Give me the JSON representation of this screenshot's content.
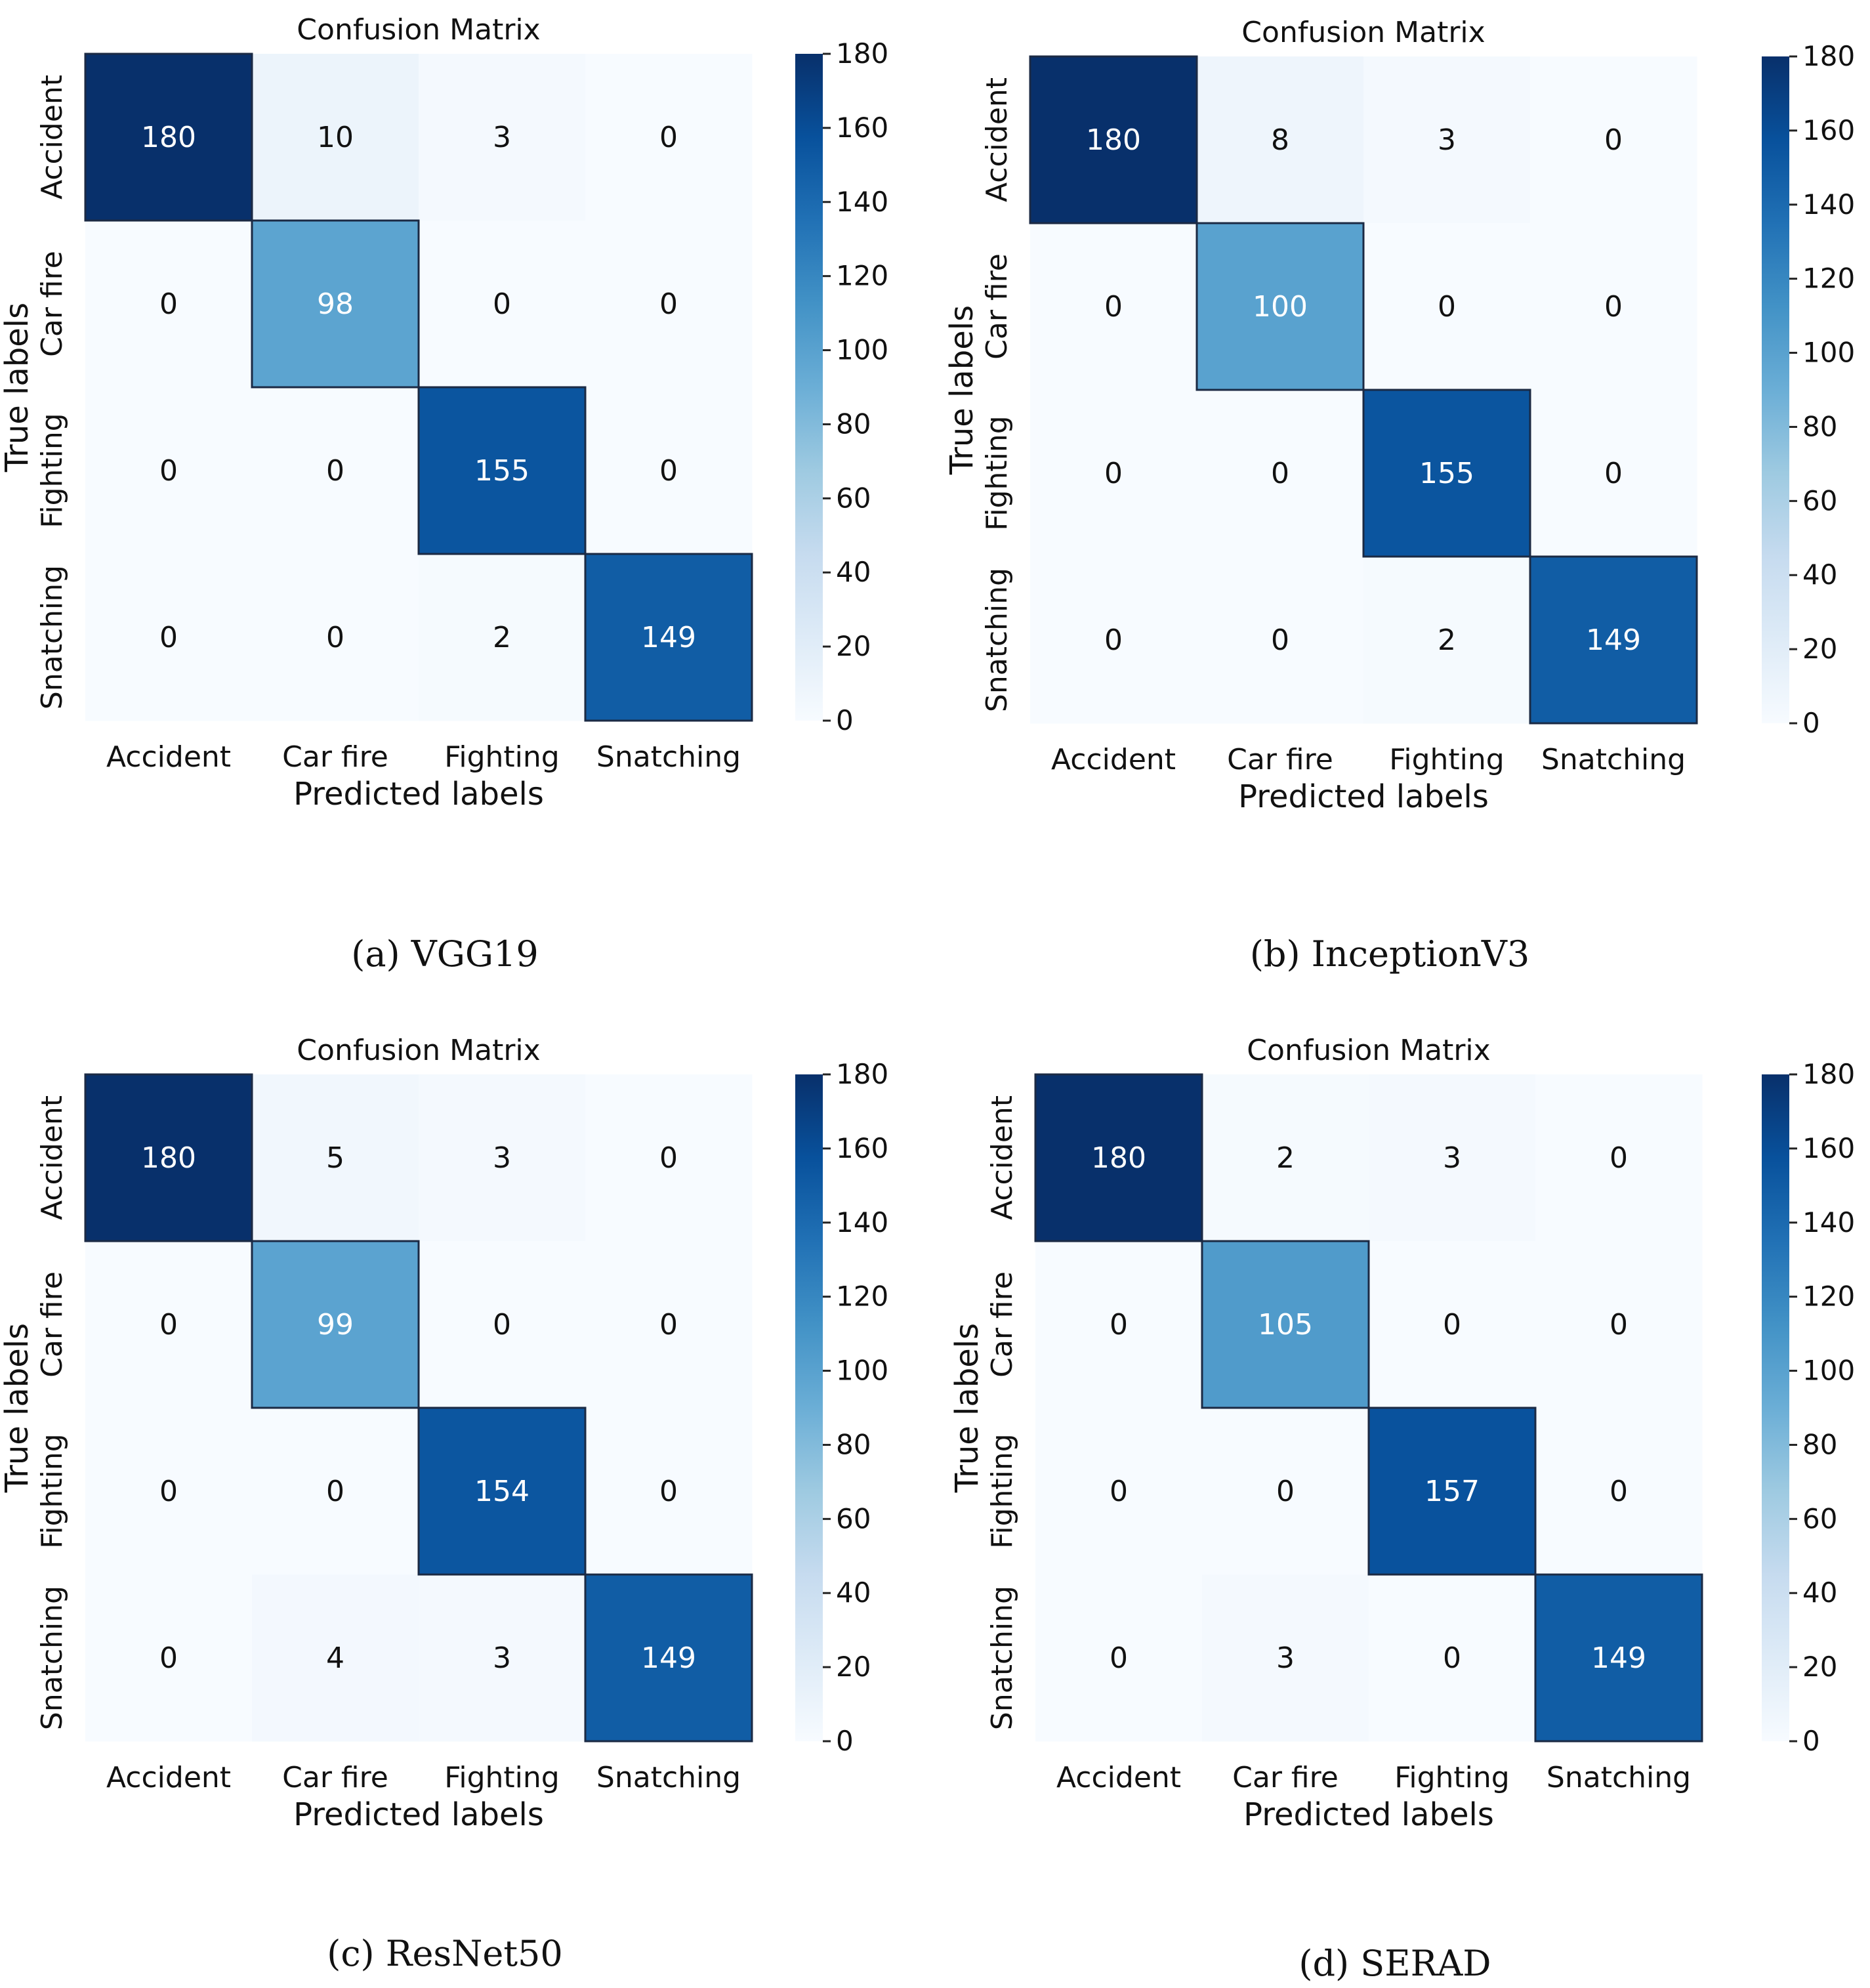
{
  "chart_data": [
    {
      "type": "heatmap",
      "title": "Confusion Matrix",
      "caption": "(a) VGG19",
      "xlabel": "Predicted labels",
      "ylabel": "True labels",
      "x_categories": [
        "Accident",
        "Car fire",
        "Fighting",
        "Snatching"
      ],
      "y_categories": [
        "Accident",
        "Car fire",
        "Fighting",
        "Snatching"
      ],
      "matrix": [
        [
          180,
          10,
          3,
          0
        ],
        [
          0,
          98,
          0,
          0
        ],
        [
          0,
          0,
          155,
          0
        ],
        [
          0,
          0,
          2,
          149
        ]
      ],
      "colorbar": {
        "min": 0,
        "max": 180,
        "ticks": [
          "0",
          "20",
          "40",
          "60",
          "80",
          "100",
          "120",
          "140",
          "160",
          "180"
        ]
      }
    },
    {
      "type": "heatmap",
      "title": "Confusion Matrix",
      "caption": "(b) InceptionV3",
      "xlabel": "Predicted labels",
      "ylabel": "True labels",
      "x_categories": [
        "Accident",
        "Car fire",
        "Fighting",
        "Snatching"
      ],
      "y_categories": [
        "Accident",
        "Car fire",
        "Fighting",
        "Snatching"
      ],
      "matrix": [
        [
          180,
          8,
          3,
          0
        ],
        [
          0,
          100,
          0,
          0
        ],
        [
          0,
          0,
          155,
          0
        ],
        [
          0,
          0,
          2,
          149
        ]
      ],
      "colorbar": {
        "min": 0,
        "max": 180,
        "ticks": [
          "0",
          "20",
          "40",
          "60",
          "80",
          "100",
          "120",
          "140",
          "160",
          "180"
        ]
      }
    },
    {
      "type": "heatmap",
      "title": "Confusion Matrix",
      "caption": "(c) ResNet50",
      "xlabel": "Predicted labels",
      "ylabel": "True labels",
      "x_categories": [
        "Accident",
        "Car fire",
        "Fighting",
        "Snatching"
      ],
      "y_categories": [
        "Accident",
        "Car fire",
        "Fighting",
        "Snatching"
      ],
      "matrix": [
        [
          180,
          5,
          3,
          0
        ],
        [
          0,
          99,
          0,
          0
        ],
        [
          0,
          0,
          154,
          0
        ],
        [
          0,
          4,
          3,
          149
        ]
      ],
      "colorbar": {
        "min": 0,
        "max": 180,
        "ticks": [
          "0",
          "20",
          "40",
          "60",
          "80",
          "100",
          "120",
          "140",
          "160",
          "180"
        ]
      }
    },
    {
      "type": "heatmap",
      "title": "Confusion Matrix",
      "caption": "(d) SERAD",
      "xlabel": "Predicted labels",
      "ylabel": "True labels",
      "x_categories": [
        "Accident",
        "Car fire",
        "Fighting",
        "Snatching"
      ],
      "y_categories": [
        "Accident",
        "Car fire",
        "Fighting",
        "Snatching"
      ],
      "matrix": [
        [
          180,
          2,
          3,
          0
        ],
        [
          0,
          105,
          0,
          0
        ],
        [
          0,
          0,
          157,
          0
        ],
        [
          0,
          3,
          0,
          149
        ]
      ],
      "colorbar": {
        "min": 0,
        "max": 180,
        "ticks": [
          "0",
          "20",
          "40",
          "60",
          "80",
          "100",
          "120",
          "140",
          "160",
          "180"
        ]
      }
    }
  ]
}
